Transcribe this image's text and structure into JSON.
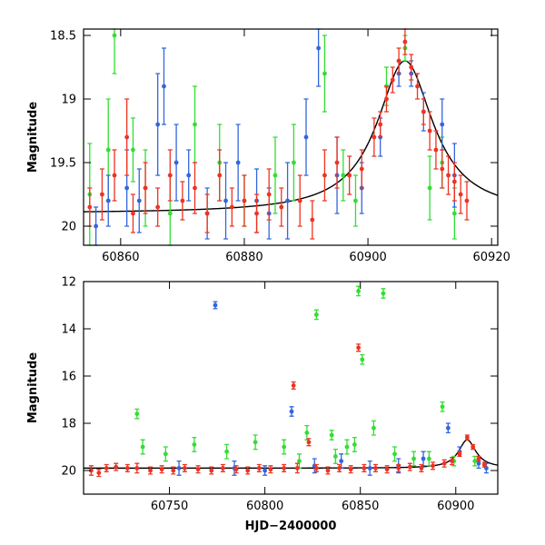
{
  "chart_data": [
    {
      "type": "scatter",
      "title": "",
      "xlabel": "",
      "ylabel": "Magnitude",
      "xlim": [
        60854,
        60921
      ],
      "ylim": [
        20.15,
        18.45
      ],
      "y_inverted": true,
      "x_ticks": [
        "60860",
        "60880",
        "60900",
        "60920"
      ],
      "x_tick_values": [
        60860,
        60880,
        60900,
        60920
      ],
      "y_ticks": [
        "18.5",
        "19",
        "19.5",
        "20"
      ],
      "y_tick_values": [
        18.5,
        19,
        19.5,
        20
      ],
      "grid": false,
      "legend": "none",
      "series": [
        {
          "color": "#33dd33",
          "points": [
            [
              60855,
              19.75,
              0.4
            ],
            [
              60858,
              19.4,
              0.4
            ],
            [
              60859,
              18.5,
              0.3
            ],
            [
              60862,
              19.4,
              0.25
            ],
            [
              60864,
              19.7,
              0.3
            ],
            [
              60868,
              19.9,
              0.3
            ],
            [
              60872,
              19.2,
              0.3
            ],
            [
              60876,
              19.5,
              0.3
            ],
            [
              60880,
              19.8,
              0.2
            ],
            [
              60885,
              19.6,
              0.3
            ],
            [
              60888,
              19.5,
              0.3
            ],
            [
              60893,
              18.8,
              0.3
            ],
            [
              60896,
              19.6,
              0.2
            ],
            [
              60898,
              19.8,
              0.2
            ],
            [
              60903,
              18.9,
              0.15
            ],
            [
              60906,
              18.6,
              0.1
            ],
            [
              60910,
              19.7,
              0.25
            ],
            [
              60912,
              19.5,
              0.2
            ],
            [
              60914,
              19.9,
              0.2
            ]
          ]
        },
        {
          "color": "#3366dd",
          "points": [
            [
              60856,
              20.0,
              0.15
            ],
            [
              60858,
              19.8,
              0.2
            ],
            [
              60861,
              19.7,
              0.3
            ],
            [
              60863,
              19.8,
              0.25
            ],
            [
              60866,
              19.2,
              0.4
            ],
            [
              60867,
              18.9,
              0.3
            ],
            [
              60869,
              19.5,
              0.3
            ],
            [
              60871,
              19.6,
              0.2
            ],
            [
              60874,
              19.9,
              0.2
            ],
            [
              60877,
              19.8,
              0.3
            ],
            [
              60879,
              19.5,
              0.3
            ],
            [
              60882,
              19.8,
              0.25
            ],
            [
              60884,
              19.9,
              0.2
            ],
            [
              60887,
              19.8,
              0.3
            ],
            [
              60890,
              19.3,
              0.3
            ],
            [
              60892,
              18.6,
              0.3
            ],
            [
              60895,
              19.6,
              0.3
            ],
            [
              60899,
              19.7,
              0.2
            ],
            [
              60902,
              19.3,
              0.15
            ],
            [
              60905,
              18.8,
              0.1
            ],
            [
              60907,
              18.8,
              0.1
            ],
            [
              60909,
              19.1,
              0.15
            ],
            [
              60912,
              19.2,
              0.2
            ],
            [
              60914,
              19.6,
              0.25
            ]
          ]
        },
        {
          "color": "#ee3322",
          "points": [
            [
              60855,
              19.85,
              0.15
            ],
            [
              60857,
              19.75,
              0.2
            ],
            [
              60859,
              19.6,
              0.2
            ],
            [
              60861,
              19.3,
              0.3
            ],
            [
              60862,
              19.9,
              0.15
            ],
            [
              60864,
              19.7,
              0.2
            ],
            [
              60866,
              19.85,
              0.15
            ],
            [
              60868,
              19.6,
              0.2
            ],
            [
              60870,
              19.8,
              0.15
            ],
            [
              60872,
              19.7,
              0.2
            ],
            [
              60874,
              19.9,
              0.15
            ],
            [
              60876,
              19.6,
              0.2
            ],
            [
              60878,
              19.85,
              0.15
            ],
            [
              60880,
              19.8,
              0.2
            ],
            [
              60882,
              19.9,
              0.15
            ],
            [
              60884,
              19.75,
              0.2
            ],
            [
              60886,
              19.85,
              0.15
            ],
            [
              60889,
              19.8,
              0.2
            ],
            [
              60891,
              19.95,
              0.15
            ],
            [
              60893,
              19.6,
              0.2
            ],
            [
              60895,
              19.5,
              0.2
            ],
            [
              60897,
              19.6,
              0.15
            ],
            [
              60899,
              19.55,
              0.15
            ],
            [
              60901,
              19.3,
              0.15
            ],
            [
              60902,
              19.2,
              0.1
            ],
            [
              60903,
              19.0,
              0.1
            ],
            [
              60904,
              18.85,
              0.1
            ],
            [
              60905,
              18.7,
              0.1
            ],
            [
              60906,
              18.55,
              0.1
            ],
            [
              60907,
              18.75,
              0.1
            ],
            [
              60908,
              18.9,
              0.1
            ],
            [
              60909,
              19.1,
              0.1
            ],
            [
              60910,
              19.25,
              0.15
            ],
            [
              60911,
              19.4,
              0.15
            ],
            [
              60912,
              19.55,
              0.15
            ],
            [
              60913,
              19.6,
              0.15
            ],
            [
              60914,
              19.65,
              0.15
            ],
            [
              60915,
              19.75,
              0.15
            ],
            [
              60916,
              19.8,
              0.15
            ]
          ]
        }
      ],
      "model_curve": {
        "color": "#000000",
        "baseline": 19.9,
        "peak_time": 60906,
        "peak_mag": 18.7,
        "timescale": 5.5
      }
    },
    {
      "type": "scatter",
      "title": "",
      "xlabel": "HJD−2400000",
      "ylabel": "Magnitude",
      "xlim": [
        60705,
        60922
      ],
      "ylim": [
        21.0,
        12.0
      ],
      "y_inverted": true,
      "x_ticks": [
        "60750",
        "60800",
        "60850",
        "60900"
      ],
      "x_tick_values": [
        60750,
        60800,
        60850,
        60900
      ],
      "y_ticks": [
        "12",
        "14",
        "16",
        "18",
        "20"
      ],
      "y_tick_values": [
        12,
        14,
        16,
        18,
        20
      ],
      "grid": false,
      "legend": "none",
      "series": [
        {
          "color": "#33dd33",
          "points": [
            [
              60733,
              17.6,
              0.2
            ],
            [
              60736,
              19.0,
              0.3
            ],
            [
              60748,
              19.3,
              0.3
            ],
            [
              60763,
              18.9,
              0.3
            ],
            [
              60780,
              19.2,
              0.3
            ],
            [
              60795,
              18.8,
              0.3
            ],
            [
              60810,
              19.0,
              0.3
            ],
            [
              60818,
              19.6,
              0.3
            ],
            [
              60822,
              18.4,
              0.3
            ],
            [
              60827,
              13.4,
              0.2
            ],
            [
              60835,
              18.5,
              0.2
            ],
            [
              60837,
              19.4,
              0.3
            ],
            [
              60843,
              19.0,
              0.3
            ],
            [
              60847,
              18.9,
              0.3
            ],
            [
              60849,
              12.4,
              0.2
            ],
            [
              60851,
              15.3,
              0.2
            ],
            [
              60857,
              18.2,
              0.3
            ],
            [
              60862,
              12.5,
              0.2
            ],
            [
              60868,
              19.3,
              0.3
            ],
            [
              60878,
              19.5,
              0.3
            ],
            [
              60886,
              19.5,
              0.3
            ],
            [
              60893,
              17.3,
              0.2
            ],
            [
              60899,
              19.6,
              0.2
            ],
            [
              60910,
              19.6,
              0.2
            ]
          ]
        },
        {
          "color": "#3366dd",
          "points": [
            [
              60755,
              19.9,
              0.3
            ],
            [
              60774,
              13.0,
              0.15
            ],
            [
              60784,
              19.9,
              0.3
            ],
            [
              60800,
              20.0,
              0.2
            ],
            [
              60814,
              17.5,
              0.2
            ],
            [
              60826,
              19.8,
              0.3
            ],
            [
              60840,
              19.6,
              0.3
            ],
            [
              60855,
              19.9,
              0.3
            ],
            [
              60870,
              19.8,
              0.3
            ],
            [
              60883,
              19.5,
              0.3
            ],
            [
              60896,
              18.2,
              0.2
            ],
            [
              60902,
              19.2,
              0.2
            ],
            [
              60912,
              19.7,
              0.2
            ],
            [
              60916,
              19.9,
              0.2
            ]
          ]
        },
        {
          "color": "#ee3322",
          "points": [
            [
              60709,
              20.0,
              0.2
            ],
            [
              60713,
              20.1,
              0.15
            ],
            [
              60717,
              19.9,
              0.15
            ],
            [
              60722,
              19.85,
              0.15
            ],
            [
              60728,
              19.9,
              0.15
            ],
            [
              60733,
              19.9,
              0.2
            ],
            [
              60740,
              20.0,
              0.15
            ],
            [
              60746,
              19.95,
              0.15
            ],
            [
              60752,
              20.0,
              0.15
            ],
            [
              60758,
              19.9,
              0.15
            ],
            [
              60765,
              19.95,
              0.15
            ],
            [
              60772,
              20.0,
              0.15
            ],
            [
              60778,
              19.9,
              0.15
            ],
            [
              60785,
              19.95,
              0.15
            ],
            [
              60791,
              20.0,
              0.15
            ],
            [
              60797,
              19.9,
              0.15
            ],
            [
              60803,
              19.95,
              0.15
            ],
            [
              60810,
              19.9,
              0.15
            ],
            [
              60815,
              16.4,
              0.15
            ],
            [
              60817,
              19.9,
              0.2
            ],
            [
              60823,
              18.8,
              0.15
            ],
            [
              60827,
              19.9,
              0.15
            ],
            [
              60833,
              20.0,
              0.15
            ],
            [
              60839,
              19.9,
              0.15
            ],
            [
              60845,
              19.95,
              0.15
            ],
            [
              60849,
              14.8,
              0.15
            ],
            [
              60852,
              19.9,
              0.15
            ],
            [
              60858,
              19.9,
              0.15
            ],
            [
              60864,
              19.95,
              0.15
            ],
            [
              60870,
              19.9,
              0.15
            ],
            [
              60876,
              19.85,
              0.15
            ],
            [
              60882,
              19.9,
              0.15
            ],
            [
              60888,
              19.8,
              0.15
            ],
            [
              60894,
              19.7,
              0.15
            ],
            [
              60898,
              19.6,
              0.15
            ],
            [
              60902,
              19.3,
              0.1
            ],
            [
              60906,
              18.6,
              0.1
            ],
            [
              60909,
              19.0,
              0.1
            ],
            [
              60912,
              19.5,
              0.1
            ],
            [
              60915,
              19.75,
              0.1
            ]
          ]
        }
      ],
      "model_curve": {
        "color": "#000000",
        "baseline": 19.9,
        "peak_time": 60906,
        "peak_mag": 18.7,
        "timescale": 5.5
      }
    }
  ]
}
